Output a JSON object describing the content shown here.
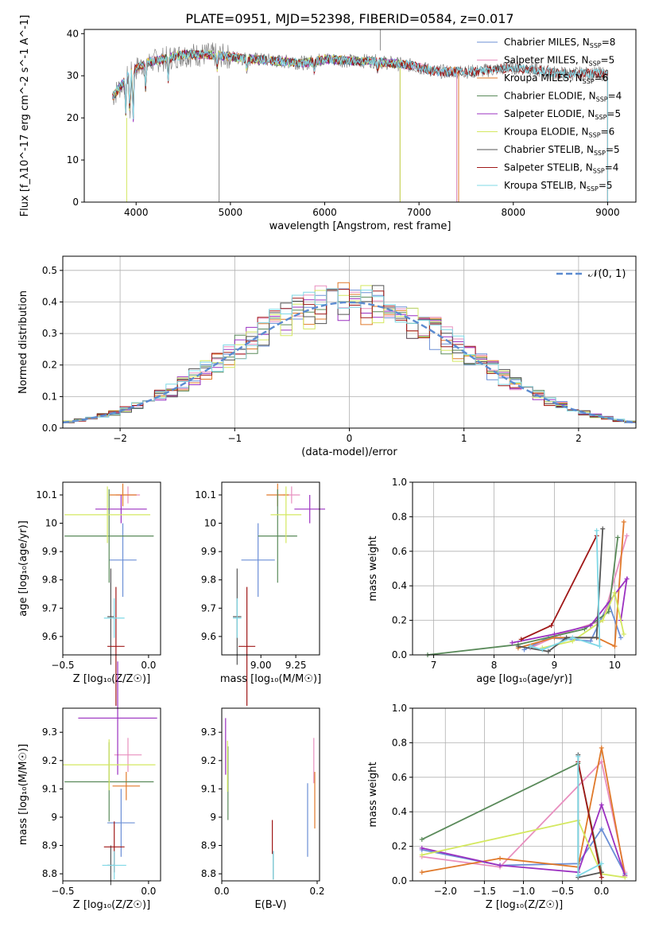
{
  "figure": {
    "title": "PLATE=0951, MJD=52398, FIBERID=0584, z=0.017"
  },
  "colors": {
    "Chabrier MILES": "#6b8fd6",
    "Salpeter MILES": "#e88fbf",
    "Kroupa MILES": "#e0792a",
    "Chabrier ELODIE": "#5a8a5a",
    "Salpeter ELODIE": "#9b30c0",
    "Kroupa ELODIE": "#d4e860",
    "Chabrier STELIB": "#555555",
    "Salpeter STELIB": "#a01818",
    "Kroupa STELIB": "#7fd8e6"
  },
  "chart_data": [
    {
      "id": "spectrum",
      "type": "line",
      "title": "PLATE=0951, MJD=52398, FIBERID=0584, z=0.017",
      "xlabel": "wavelength [Angstrom, rest frame]",
      "ylabel": "Flux [f_λ10^-17 erg cm^-2 s^-1 A^-1]",
      "xlim": [
        3450,
        9300
      ],
      "ylim": [
        0,
        41
      ],
      "xticks": [
        4000,
        5000,
        6000,
        7000,
        8000,
        9000
      ],
      "yticks": [
        0,
        10,
        20,
        30,
        40
      ],
      "grid": false,
      "legend_position": "top-right",
      "continuum": {
        "x": [
          3750,
          3850,
          3950,
          4100,
          4300,
          4500,
          4800,
          5000,
          5200,
          5500,
          5800,
          6000,
          6300,
          6500,
          6700,
          6900,
          7100,
          7200,
          7400,
          7600,
          7800,
          8000,
          8200,
          8500,
          8800,
          9000
        ],
        "y": [
          25,
          28,
          31,
          33,
          34,
          35,
          35,
          34.5,
          34,
          33.5,
          33,
          34,
          33.5,
          33.5,
          33,
          32.5,
          31.5,
          31,
          31,
          31,
          31.5,
          32,
          31.5,
          30.5,
          30.5,
          30.5
        ]
      },
      "series": [
        {
          "name": "Chabrier MILES",
          "nssp": "8",
          "xmax": 7400
        },
        {
          "name": "Salpeter MILES",
          "nssp": "5",
          "xmax": 7400
        },
        {
          "name": "Kroupa MILES",
          "nssp": "6",
          "xmax": 7420
        },
        {
          "name": "Chabrier ELODIE",
          "nssp": "4",
          "xmax": 6800
        },
        {
          "name": "Salpeter ELODIE",
          "nssp": "5",
          "xmax": 6800
        },
        {
          "name": "Kroupa ELODIE",
          "nssp": "6",
          "xmax": 6800
        },
        {
          "name": "Chabrier STELIB",
          "nssp": "5",
          "xmax": 9000
        },
        {
          "name": "Salpeter STELIB",
          "nssp": "4",
          "xmax": 9000
        },
        {
          "name": "Kroupa STELIB",
          "nssp": "5",
          "xmax": 9000
        }
      ]
    },
    {
      "id": "residuals",
      "type": "bar",
      "xlabel": "(data-model)/error",
      "ylabel": "Normed distribution",
      "xlim": [
        -2.5,
        2.5
      ],
      "ylim": [
        0,
        0.545
      ],
      "xticks": [
        -2,
        -1,
        0,
        1,
        2
      ],
      "yticks": [
        0.0,
        0.1,
        0.2,
        0.3,
        0.4,
        0.5
      ],
      "grid": true,
      "legend_position": "top-right",
      "reference_label": "𝒩(0, 1)",
      "bin_width": 0.1,
      "bin_start": -2.5
    },
    {
      "id": "age_vs_Z",
      "type": "scatter",
      "xlabel": "Z [log₁₀(Z/Z☉)]",
      "ylabel": "age  [log₁₀(age/yr)]",
      "xlim": [
        -0.5,
        0.07
      ],
      "ylim": [
        9.535,
        10.145
      ],
      "xticks": [
        -0.5,
        0.0
      ],
      "xticklabels": [
        "−0.5",
        "0.0"
      ],
      "yticks": [
        9.6,
        9.7,
        9.8,
        9.9,
        10.0,
        10.1
      ],
      "grid": false,
      "points": [
        {
          "name": "Chabrier MILES",
          "x": -0.15,
          "xerr": 0.08,
          "y": 9.87,
          "yerr": 0.13
        },
        {
          "name": "Salpeter MILES",
          "x": -0.12,
          "xerr": 0.07,
          "y": 10.1,
          "yerr": 0.03
        },
        {
          "name": "Kroupa MILES",
          "x": -0.15,
          "xerr": 0.08,
          "y": 10.1,
          "yerr": 0.04
        },
        {
          "name": "Chabrier ELODIE",
          "x": -0.23,
          "xerr": 0.26,
          "y": 9.955,
          "yerr": 0.165
        },
        {
          "name": "Salpeter ELODIE",
          "x": -0.16,
          "xerr": 0.15,
          "y": 10.05,
          "yerr": 0.05
        },
        {
          "name": "Kroupa ELODIE",
          "x": -0.24,
          "xerr": 0.25,
          "y": 10.03,
          "yerr": 0.1
        },
        {
          "name": "Chabrier STELIB",
          "x": -0.22,
          "xerr": 0.02,
          "y": 9.67,
          "yerr": 0.17
        },
        {
          "name": "Salpeter STELIB",
          "x": -0.19,
          "xerr": 0.05,
          "y": 9.565,
          "yerr": 0.21
        },
        {
          "name": "Kroupa STELIB",
          "x": -0.2,
          "xerr": 0.06,
          "y": 9.665,
          "yerr": 0.07
        }
      ]
    },
    {
      "id": "age_vs_mass",
      "type": "scatter",
      "xlabel": "mass [log₁₀(M/M☉)]",
      "ylabel": "",
      "xlim": [
        8.72,
        9.42
      ],
      "ylim": [
        9.535,
        10.145
      ],
      "xticks": [
        9.0,
        9.25
      ],
      "xticklabels": [
        "9.00",
        "9.25"
      ],
      "yticks": [
        9.6,
        9.7,
        9.8,
        9.9,
        10.0,
        10.1
      ],
      "grid": false,
      "points": [
        {
          "name": "Chabrier MILES",
          "x": 8.98,
          "xerr": 0.12,
          "y": 9.87,
          "yerr": 0.13
        },
        {
          "name": "Salpeter MILES",
          "x": 9.22,
          "xerr": 0.06,
          "y": 10.1,
          "yerr": 0.03
        },
        {
          "name": "Kroupa MILES",
          "x": 9.12,
          "xerr": 0.08,
          "y": 10.1,
          "yerr": 0.04
        },
        {
          "name": "Chabrier ELODIE",
          "x": 9.12,
          "xerr": 0.14,
          "y": 9.955,
          "yerr": 0.165
        },
        {
          "name": "Salpeter ELODIE",
          "x": 9.35,
          "xerr": 0.11,
          "y": 10.05,
          "yerr": 0.05
        },
        {
          "name": "Kroupa ELODIE",
          "x": 9.18,
          "xerr": 0.11,
          "y": 10.03,
          "yerr": 0.1
        },
        {
          "name": "Chabrier STELIB",
          "x": 8.83,
          "xerr": 0.03,
          "y": 9.67,
          "yerr": 0.17
        },
        {
          "name": "Salpeter STELIB",
          "x": 8.9,
          "xerr": 0.06,
          "y": 9.565,
          "yerr": 0.21
        },
        {
          "name": "Kroupa STELIB",
          "x": 8.83,
          "xerr": 0.03,
          "y": 9.665,
          "yerr": 0.07
        }
      ]
    },
    {
      "id": "weight_vs_age",
      "type": "line",
      "xlabel": "age  [log₁₀(age/yr)]",
      "ylabel": "mass weight",
      "xlim": [
        6.65,
        10.35
      ],
      "ylim": [
        0,
        1.0
      ],
      "xticks": [
        7,
        8,
        9,
        10
      ],
      "yticks": [
        0.0,
        0.2,
        0.4,
        0.6,
        0.8,
        1.0
      ],
      "grid": true
    },
    {
      "id": "mass_vs_Z",
      "type": "scatter",
      "xlabel": "Z [log₁₀(Z/Z☉)]",
      "ylabel": "mass [log₁₀(M/M☉)]",
      "xlim": [
        -0.5,
        0.07
      ],
      "ylim": [
        8.775,
        9.385
      ],
      "xticks": [
        -0.5,
        0.0
      ],
      "xticklabels": [
        "−0.5",
        "0.0"
      ],
      "yticks": [
        8.8,
        8.9,
        9.0,
        9.1,
        9.2,
        9.3
      ],
      "grid": false,
      "points": [
        {
          "name": "Chabrier MILES",
          "x": -0.16,
          "xerr": 0.08,
          "y": 8.98,
          "yerr": 0.12
        },
        {
          "name": "Salpeter MILES",
          "x": -0.12,
          "xerr": 0.08,
          "y": 9.22,
          "yerr": 0.06
        },
        {
          "name": "Kroupa MILES",
          "x": -0.13,
          "xerr": 0.08,
          "y": 9.11,
          "yerr": 0.05
        },
        {
          "name": "Chabrier ELODIE",
          "x": -0.23,
          "xerr": 0.26,
          "y": 9.125,
          "yerr": 0.14
        },
        {
          "name": "Salpeter ELODIE",
          "x": -0.18,
          "xerr": 0.23,
          "y": 9.35,
          "yerr": 0.2
        },
        {
          "name": "Kroupa ELODIE",
          "x": -0.23,
          "xerr": 0.27,
          "y": 9.185,
          "yerr": 0.09
        },
        {
          "name": "Chabrier STELIB",
          "x": -0.22,
          "xerr": 0.02,
          "y": 8.83,
          "yerr": 0.07
        },
        {
          "name": "Salpeter STELIB",
          "x": -0.2,
          "xerr": 0.06,
          "y": 8.895,
          "yerr": 0.09
        },
        {
          "name": "Kroupa STELIB",
          "x": -0.2,
          "xerr": 0.07,
          "y": 8.83,
          "yerr": 0.05
        }
      ]
    },
    {
      "id": "mass_vs_ebv",
      "type": "scatter",
      "xlabel": "E(B-V)",
      "ylabel": "",
      "xlim": [
        0.0,
        0.205
      ],
      "ylim": [
        8.775,
        9.385
      ],
      "xticks": [
        0.0,
        0.2
      ],
      "xticklabels": [
        "0.0",
        "0.2"
      ],
      "yticks": [
        8.8,
        8.9,
        9.0,
        9.1,
        9.2,
        9.3
      ],
      "grid": false,
      "points": [
        {
          "name": "Chabrier MILES",
          "x": 0.18,
          "y": 8.99,
          "yerr": 0.13
        },
        {
          "name": "Salpeter MILES",
          "x": 0.193,
          "y": 9.2,
          "yerr": 0.08
        },
        {
          "name": "Kroupa MILES",
          "x": 0.195,
          "y": 9.06,
          "yerr": 0.1
        },
        {
          "name": "Chabrier ELODIE",
          "x": 0.013,
          "y": 9.12,
          "yerr": 0.13
        },
        {
          "name": "Salpeter ELODIE",
          "x": 0.008,
          "y": 9.25,
          "yerr": 0.1
        },
        {
          "name": "Kroupa ELODIE",
          "x": 0.012,
          "y": 9.18,
          "yerr": 0.09
        },
        {
          "name": "Chabrier STELIB",
          "x": 0.108,
          "y": 8.83,
          "yerr": 0.05
        },
        {
          "name": "Salpeter STELIB",
          "x": 0.106,
          "y": 8.93,
          "yerr": 0.06
        },
        {
          "name": "Kroupa STELIB",
          "x": 0.108,
          "y": 8.83,
          "yerr": 0.05
        }
      ]
    },
    {
      "id": "weight_vs_Z",
      "type": "line",
      "xlabel": "Z [log₁₀(Z/Z☉)]",
      "ylabel": "mass weight",
      "xlim": [
        -2.42,
        0.44
      ],
      "ylim": [
        0,
        1.0
      ],
      "xticks": [
        -2.0,
        -1.5,
        -1.0,
        -0.5,
        0.0
      ],
      "xticklabels": [
        "−2.0",
        "−1.5",
        "−1.0",
        "−0.5",
        "0.0"
      ],
      "yticks": [
        0.0,
        0.2,
        0.4,
        0.6,
        0.8,
        1.0
      ],
      "grid": true
    }
  ],
  "legend": [
    {
      "label": "Chabrier MILES, N",
      "sub": "SSP",
      "suffix": "=8"
    },
    {
      "label": "Salpeter MILES, N",
      "sub": "SSP",
      "suffix": "=5"
    },
    {
      "label": "Kroupa MILES, N",
      "sub": "SSP",
      "suffix": "=6"
    },
    {
      "label": "Chabrier ELODIE, N",
      "sub": "SSP",
      "suffix": "=4"
    },
    {
      "label": "Salpeter ELODIE, N",
      "sub": "SSP",
      "suffix": "=5"
    },
    {
      "label": "Kroupa ELODIE, N",
      "sub": "SSP",
      "suffix": "=6"
    },
    {
      "label": "Chabrier STELIB, N",
      "sub": "SSP",
      "suffix": "=5"
    },
    {
      "label": "Salpeter STELIB, N",
      "sub": "SSP",
      "suffix": "=4"
    },
    {
      "label": "Kroupa STELIB, N",
      "sub": "SSP",
      "suffix": "=5"
    }
  ]
}
